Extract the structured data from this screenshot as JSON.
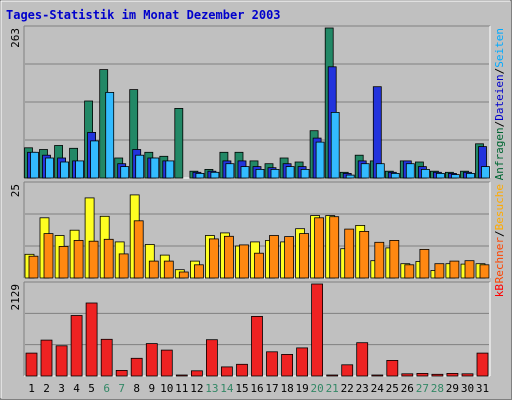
{
  "chart_data": {
    "type": "bar",
    "title": "Tages-Statistik im Monat Dezember 2003",
    "title_color": "#0000cc",
    "background": "#c0c0c0",
    "grid": true,
    "categories": [
      "1",
      "2",
      "3",
      "4",
      "5",
      "6",
      "7",
      "8",
      "9",
      "10",
      "11",
      "12",
      "13",
      "14",
      "15",
      "16",
      "17",
      "18",
      "19",
      "20",
      "21",
      "22",
      "23",
      "24",
      "25",
      "26",
      "27",
      "28",
      "29",
      "30",
      "31"
    ],
    "weekend_days": [
      "6",
      "7",
      "13",
      "14",
      "20",
      "21",
      "27",
      "28"
    ],
    "weekday_label_color": "#000000",
    "weekend_label_color": "#338866",
    "panels": [
      {
        "id": "top",
        "ymax_label": "263",
        "ymax": 263,
        "axis_labels": [
          {
            "text": "Anfragen",
            "color": "#006633"
          },
          {
            "text": "Dateien",
            "color": "#0000cc"
          },
          {
            "text": "Seiten",
            "color": "#00aaff"
          }
        ],
        "series": [
          {
            "name": "Anfragen",
            "color": "#228866",
            "values": [
              53,
              50,
              57,
              52,
              135,
              190,
              35,
              155,
              45,
              38,
              122,
              12,
              15,
              45,
              45,
              30,
              25,
              35,
              28,
              83,
              263,
              10,
              40,
              30,
              12,
              30,
              28,
              12,
              10,
              12,
              60
            ]
          },
          {
            "name": "Dateien",
            "color": "#2233dd",
            "values": [
              45,
              40,
              35,
              30,
              80,
              0,
              25,
              50,
              35,
              30,
              0,
              10,
              12,
              30,
              30,
              20,
              18,
              25,
              20,
              70,
              195,
              8,
              30,
              160,
              10,
              30,
              20,
              10,
              8,
              10,
              55
            ]
          },
          {
            "name": "Seiten",
            "color": "#33bbff",
            "values": [
              45,
              35,
              28,
              30,
              65,
              150,
              20,
              40,
              35,
              30,
              0,
              8,
              10,
              25,
              20,
              15,
              15,
              20,
              15,
              63,
              115,
              5,
              25,
              25,
              8,
              25,
              15,
              8,
              6,
              8,
              20
            ]
          }
        ]
      },
      {
        "id": "middle",
        "ymax_label": "25",
        "ymax": 25,
        "axis_labels": [
          {
            "text": "Rechner",
            "color": "#ff4400"
          },
          {
            "text": "Besuche",
            "color": "#ffaa00"
          }
        ],
        "series": [
          {
            "name": "Besuche",
            "color": "#ffff22",
            "values": [
              6.3,
              16.0,
              11.3,
              12.7,
              21.3,
              16.4,
              9.6,
              22.1,
              8.9,
              6.1,
              2.2,
              4.5,
              11.3,
              12.0,
              8.5,
              9.6,
              10.0,
              9.6,
              13.1,
              16.6,
              16.6,
              7.8,
              14.0,
              4.6,
              8.0,
              3.8,
              4.4,
              2.0,
              3.8,
              3.7,
              3.8
            ]
          },
          {
            "name": "Rechner",
            "color": "#ff8811",
            "values": [
              5.8,
              11.8,
              8.4,
              10.0,
              9.8,
              10.3,
              6.4,
              15.2,
              4.5,
              4.5,
              1.6,
              3.5,
              10.4,
              11.1,
              8.8,
              6.6,
              11.3,
              11.0,
              11.8,
              16.0,
              16.3,
              13.0,
              12.4,
              9.5,
              10.0,
              3.5,
              7.6,
              3.8,
              4.5,
              4.6,
              3.5
            ]
          }
        ]
      },
      {
        "id": "bottom",
        "ymax_label": "2129",
        "ymax": 2129,
        "axis_labels": [
          {
            "text": "kB",
            "color": "#ff0000"
          }
        ],
        "series": [
          {
            "name": "kB",
            "color": "#ee2222",
            "values": [
              530,
              830,
              700,
              1400,
              1690,
              850,
              130,
              410,
              750,
              600,
              20,
              120,
              840,
              210,
              270,
              1380,
              560,
              500,
              650,
              2129,
              20,
              260,
              770,
              20,
              360,
              50,
              60,
              40,
              60,
              50,
              530
            ]
          }
        ]
      }
    ]
  }
}
